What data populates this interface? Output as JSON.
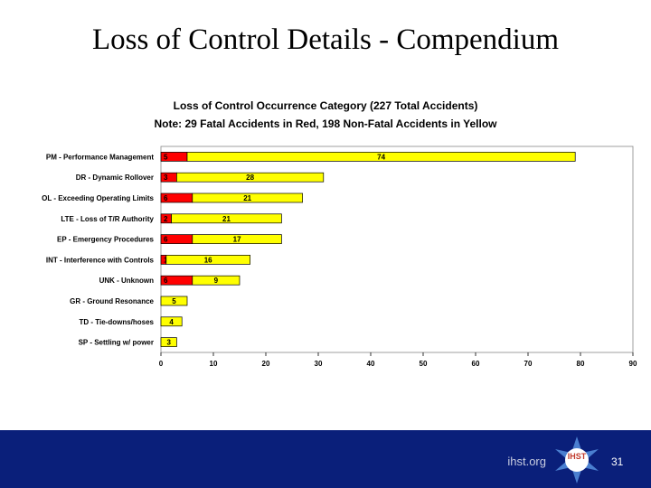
{
  "slide": {
    "title": "Loss of Control Details - Compendium",
    "page_number": "31",
    "site": "ihst.org",
    "logo_text": "IHST"
  },
  "colors": {
    "fatal": "#ff0000",
    "non_fatal": "#ffff00",
    "footer": "#0a1f7a"
  },
  "chart_data": {
    "type": "bar",
    "orientation": "horizontal",
    "stacked": true,
    "title": "Loss of Control Occurrence Category (227 Total Accidents)",
    "subtitle": "Note:  29 Fatal Accidents in Red, 198 Non-Fatal Accidents in Yellow",
    "categories": [
      "PM - Performance Management",
      "DR - Dynamic Rollover",
      "OL - Exceeding Operating Limits",
      "LTE - Loss of T/R Authority",
      "EP - Emergency Procedures",
      "INT - Interference with Controls",
      "UNK - Unknown",
      "GR - Ground Resonance",
      "TD - Tie-downs/hoses",
      "SP - Settling w/ power"
    ],
    "series": [
      {
        "color": "#ff0000",
        "values": [
          5,
          3,
          6,
          2,
          6,
          1,
          6,
          0,
          0,
          0
        ]
      },
      {
        "color": "#ffff00",
        "values": [
          74,
          28,
          21,
          21,
          17,
          16,
          9,
          5,
          4,
          3
        ]
      }
    ],
    "xlim": [
      0,
      90
    ],
    "xticks": [
      0,
      10,
      20,
      30,
      40,
      50,
      60,
      70,
      80,
      90
    ],
    "grid": false,
    "legend": "none"
  }
}
